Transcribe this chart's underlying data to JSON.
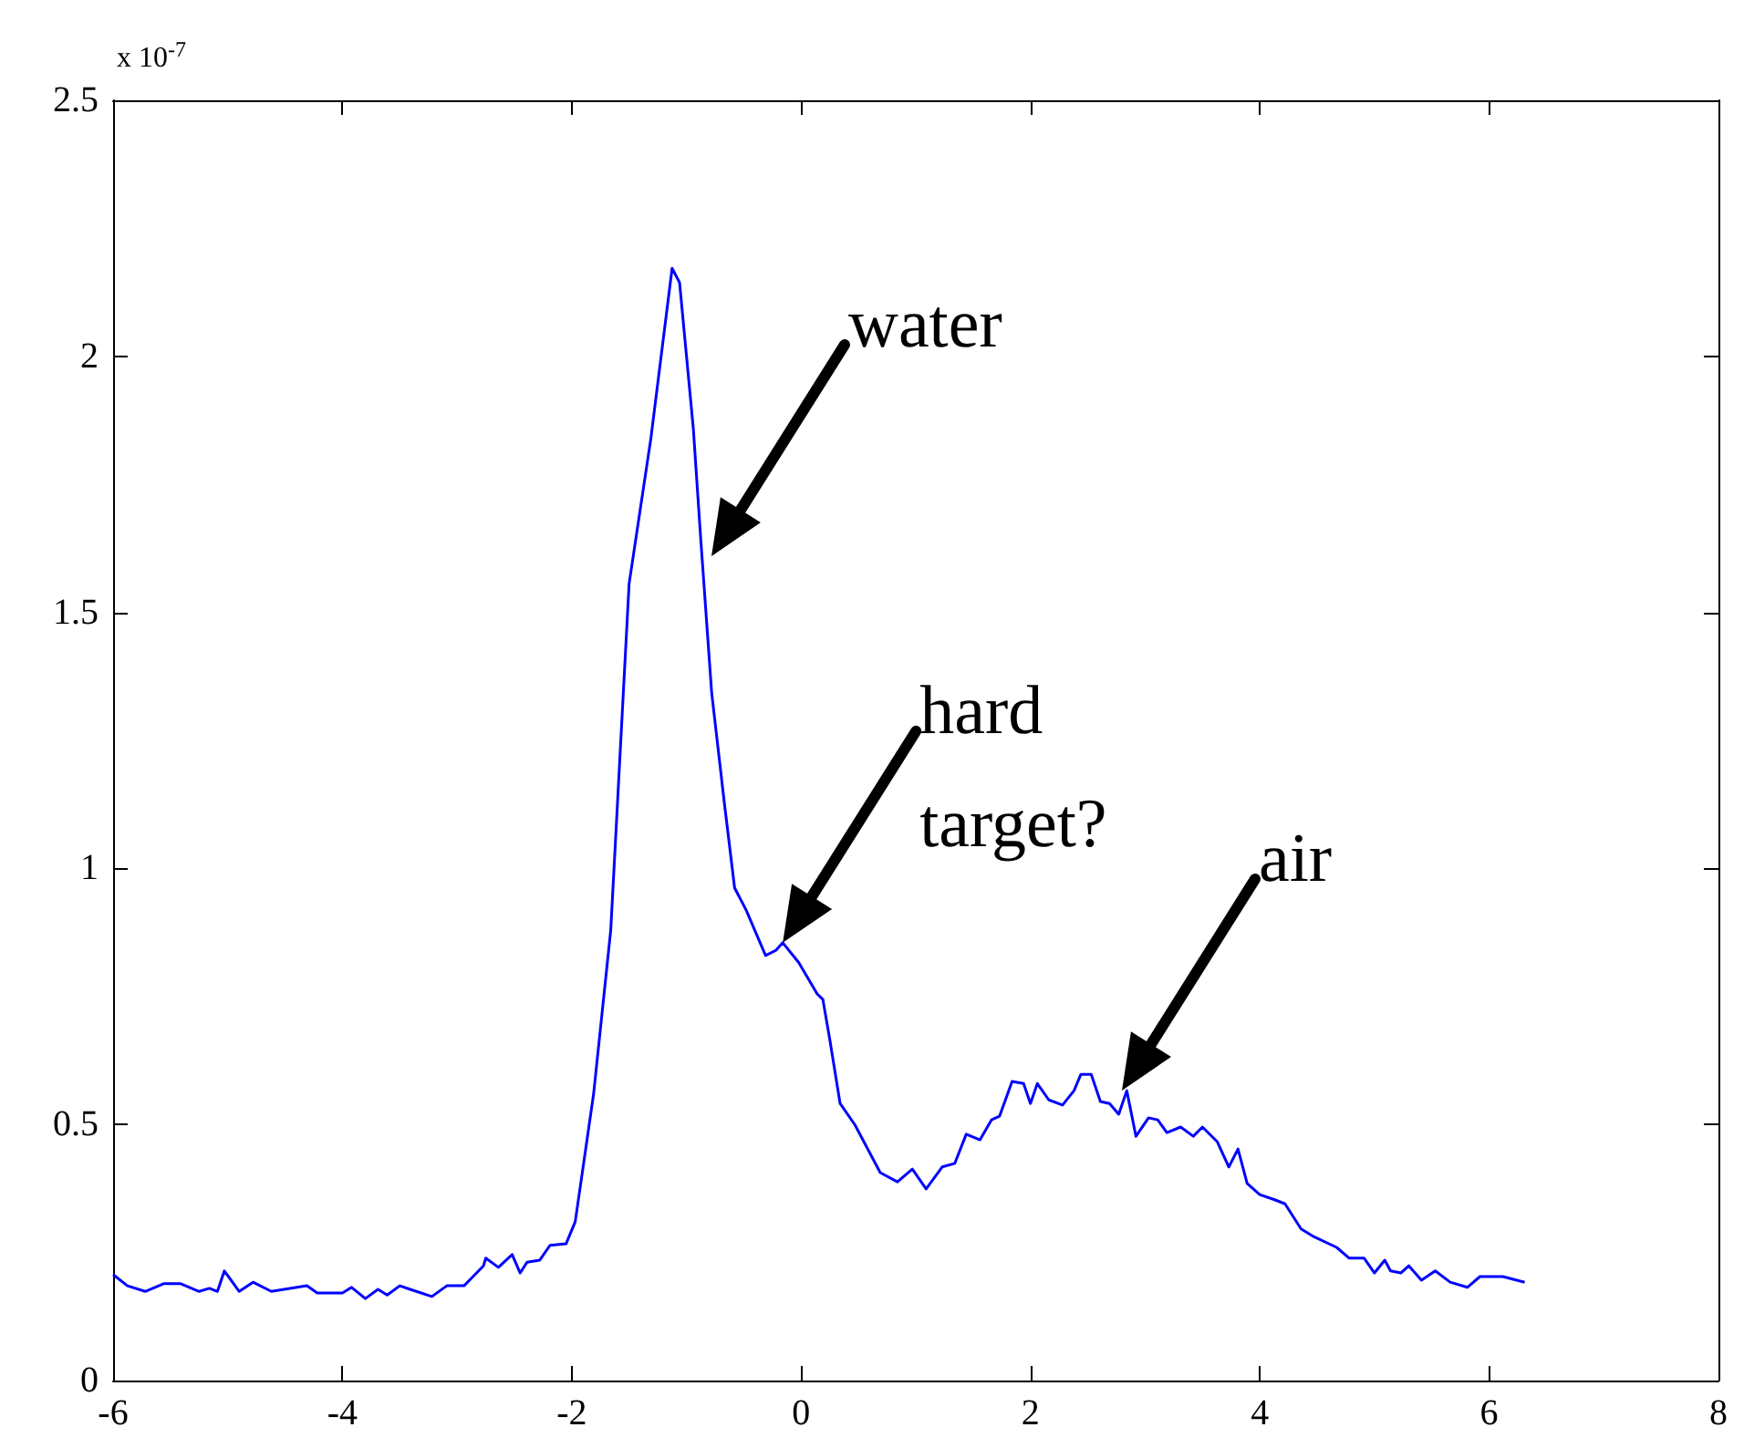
{
  "chart_data": {
    "type": "line",
    "color": "#0000ff",
    "x": [
      -6,
      -5.875,
      -5.72,
      -5.56,
      -5.41,
      -5.25,
      -5.16,
      -5.09,
      -5.03,
      -4.9,
      -4.78,
      -4.62,
      -4.31,
      -4.22,
      -4,
      -3.92,
      -3.8,
      -3.69,
      -3.61,
      -3.5,
      -3.41,
      -3.22,
      -3.09,
      -2.94,
      -2.77,
      -2.75,
      -2.64,
      -2.52,
      -2.45,
      -2.39,
      -2.28,
      -2.19,
      -2.05,
      -1.97,
      -1.81,
      -1.66,
      -1.5,
      -1.31,
      -1.125,
      -1.06,
      -0.94,
      -0.875,
      -0.78,
      -0.67,
      -0.58,
      -0.48,
      -0.31,
      -0.22,
      -0.16,
      -0.02,
      0.14,
      0.19,
      0.25,
      0.34,
      0.47,
      0.69,
      0.84,
      0.97,
      1.09,
      1.23,
      1.34,
      1.44,
      1.56,
      1.66,
      1.73,
      1.84,
      1.94,
      2,
      2.06,
      2.16,
      2.28,
      2.38,
      2.44,
      2.53,
      2.61,
      2.69,
      2.77,
      2.84,
      2.92,
      3.03,
      3.11,
      3.19,
      3.31,
      3.42,
      3.5,
      3.63,
      3.73,
      3.81,
      3.89,
      4,
      4.13,
      4.22,
      4.36,
      4.47,
      4.67,
      4.78,
      4.91,
      5,
      5.09,
      5.14,
      5.23,
      5.3,
      5.41,
      5.53,
      5.66,
      5.81,
      5.92,
      6.12,
      6.31
    ],
    "values": [
      0.207,
      0.185,
      0.174,
      0.189,
      0.189,
      0.174,
      0.18,
      0.174,
      0.214,
      0.174,
      0.192,
      0.174,
      0.185,
      0.171,
      0.171,
      0.182,
      0.16,
      0.178,
      0.167,
      0.185,
      0.178,
      0.164,
      0.185,
      0.185,
      0.224,
      0.239,
      0.221,
      0.246,
      0.21,
      0.231,
      0.235,
      0.264,
      0.267,
      0.31,
      0.559,
      0.88,
      1.556,
      1.84,
      2.172,
      2.144,
      1.859,
      1.642,
      1.343,
      1.129,
      0.962,
      0.919,
      0.83,
      0.84,
      0.855,
      0.816,
      0.755,
      0.744,
      0.666,
      0.541,
      0.499,
      0.406,
      0.388,
      0.413,
      0.374,
      0.417,
      0.424,
      0.481,
      0.47,
      0.509,
      0.516,
      0.584,
      0.58,
      0.541,
      0.58,
      0.548,
      0.538,
      0.566,
      0.598,
      0.598,
      0.545,
      0.541,
      0.52,
      0.566,
      0.477,
      0.513,
      0.509,
      0.484,
      0.495,
      0.477,
      0.495,
      0.466,
      0.417,
      0.452,
      0.385,
      0.363,
      0.353,
      0.345,
      0.296,
      0.281,
      0.26,
      0.239,
      0.239,
      0.21,
      0.235,
      0.214,
      0.21,
      0.224,
      0.196,
      0.214,
      0.192,
      0.182,
      0.203,
      0.203,
      0.192
    ],
    "xlim": [
      -6,
      8
    ],
    "xticks": [
      -6,
      -4,
      -2,
      0,
      2,
      4,
      6,
      8
    ],
    "ylim": [
      0,
      2.5
    ],
    "yticks": [
      0,
      0.5,
      1,
      1.5,
      2,
      2.5
    ],
    "grid": false,
    "marker": "none",
    "line_style": "solid",
    "annotations": [
      "x 10$^{-7}$",
      "water",
      {
        "text": "hard target?",
        "x": -0.16,
        "y": 0.855
      },
      "air"
    ]
  }
}
